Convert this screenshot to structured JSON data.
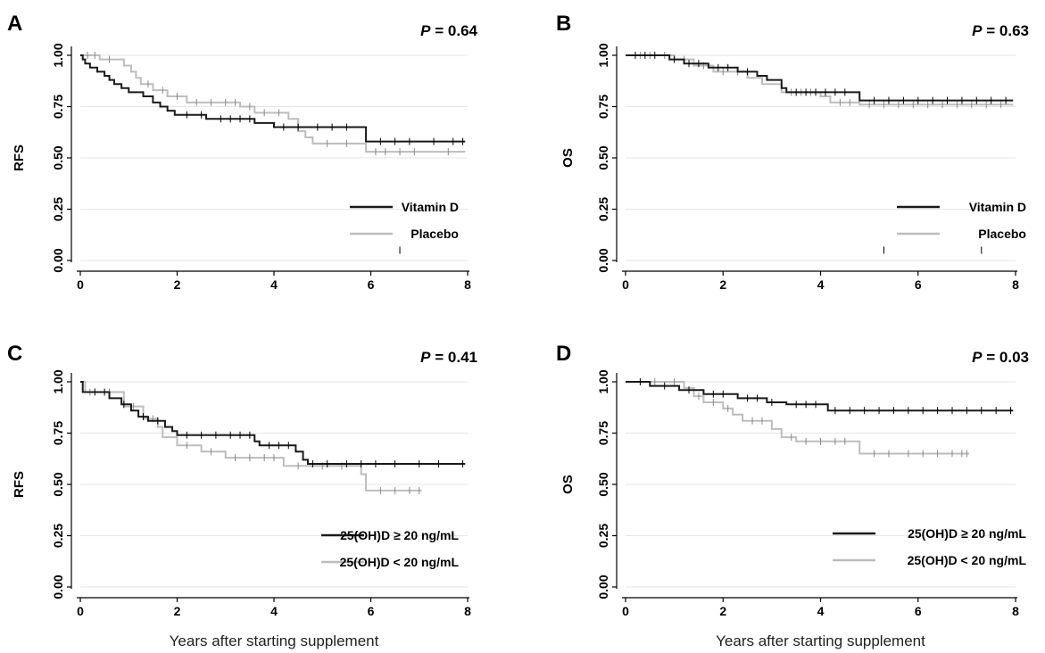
{
  "colors": {
    "dark": "#1a1a1a",
    "light": "#bdbdbd",
    "grid": "#e6e6e6"
  },
  "chart_data": [
    {
      "panel": "A",
      "type": "line",
      "step": true,
      "p_label": "P",
      "p_value": "= 0.64",
      "ylabel": "RFS",
      "xlabel": "",
      "xlim": [
        0,
        8
      ],
      "ylim": [
        0,
        1
      ],
      "xticks": [
        "0",
        "2",
        "4",
        "6",
        "8"
      ],
      "yticks": [
        "0.00",
        "0.25",
        "0.50",
        "0.75",
        "1.00"
      ],
      "grid": true,
      "legend_position": "bottom-right",
      "series": [
        {
          "name": "Vitamin D",
          "color": "#1a1a1a",
          "points": [
            [
              0,
              1
            ],
            [
              0.05,
              0.98
            ],
            [
              0.1,
              0.96
            ],
            [
              0.2,
              0.94
            ],
            [
              0.35,
              0.92
            ],
            [
              0.5,
              0.9
            ],
            [
              0.6,
              0.88
            ],
            [
              0.7,
              0.86
            ],
            [
              0.85,
              0.84
            ],
            [
              1.0,
              0.82
            ],
            [
              1.3,
              0.8
            ],
            [
              1.5,
              0.77
            ],
            [
              1.65,
              0.75
            ],
            [
              1.8,
              0.73
            ],
            [
              1.95,
              0.71
            ],
            [
              2.6,
              0.69
            ],
            [
              3.6,
              0.67
            ],
            [
              4.0,
              0.65
            ],
            [
              5.9,
              0.58
            ],
            [
              7.95,
              0.58
            ]
          ],
          "censor": [
            2.2,
            2.5,
            2.9,
            3.1,
            3.3,
            3.5,
            4.2,
            4.5,
            4.9,
            5.2,
            5.5,
            6.2,
            6.5,
            6.8,
            7.3,
            7.7,
            7.9
          ]
        },
        {
          "name": "Placebo",
          "color": "#bdbdbd",
          "points": [
            [
              0,
              1
            ],
            [
              0.4,
              0.98
            ],
            [
              0.9,
              0.95
            ],
            [
              1.05,
              0.92
            ],
            [
              1.15,
              0.89
            ],
            [
              1.25,
              0.86
            ],
            [
              1.5,
              0.83
            ],
            [
              1.8,
              0.8
            ],
            [
              2.2,
              0.77
            ],
            [
              3.3,
              0.75
            ],
            [
              3.6,
              0.72
            ],
            [
              4.3,
              0.69
            ],
            [
              4.5,
              0.63
            ],
            [
              4.65,
              0.6
            ],
            [
              4.8,
              0.57
            ],
            [
              5.9,
              0.53
            ],
            [
              7.95,
              0.53
            ]
          ],
          "censor": [
            0.15,
            0.3,
            0.6,
            1.4,
            1.7,
            2.0,
            2.4,
            2.7,
            3.0,
            3.2,
            3.5,
            3.8,
            4.1,
            5.1,
            5.5,
            6.1,
            6.3,
            6.6,
            6.9,
            7.6
          ]
        }
      ],
      "extra_censor": [
        [
          6.6,
          0.05
        ]
      ]
    },
    {
      "panel": "B",
      "type": "line",
      "step": true,
      "p_label": "P",
      "p_value": "= 0.63",
      "ylabel": "OS",
      "xlabel": "",
      "xlim": [
        0,
        8
      ],
      "ylim": [
        0,
        1
      ],
      "xticks": [
        "0",
        "2",
        "4",
        "6",
        "8"
      ],
      "yticks": [
        "0.00",
        "0.25",
        "0.50",
        "0.75",
        "1.00"
      ],
      "grid": true,
      "legend_position": "bottom-right",
      "series": [
        {
          "name": "Vitamin D",
          "color": "#1a1a1a",
          "points": [
            [
              0,
              1
            ],
            [
              0.9,
              0.98
            ],
            [
              1.2,
              0.96
            ],
            [
              1.7,
              0.94
            ],
            [
              2.3,
              0.92
            ],
            [
              2.7,
              0.9
            ],
            [
              2.9,
              0.88
            ],
            [
              3.2,
              0.84
            ],
            [
              3.3,
              0.82
            ],
            [
              4.8,
              0.78
            ],
            [
              7.95,
              0.78
            ]
          ],
          "censor": [
            0.2,
            0.4,
            0.6,
            1.0,
            1.3,
            1.5,
            1.9,
            2.1,
            2.5,
            3.5,
            3.7,
            3.9,
            4.1,
            4.3,
            4.5,
            5.1,
            5.4,
            5.7,
            6.0,
            6.3,
            6.6,
            6.9,
            7.2,
            7.5,
            7.8
          ]
        },
        {
          "name": "Placebo",
          "color": "#bdbdbd",
          "points": [
            [
              0,
              1
            ],
            [
              1.0,
              0.98
            ],
            [
              1.4,
              0.95
            ],
            [
              1.8,
              0.92
            ],
            [
              2.5,
              0.89
            ],
            [
              2.8,
              0.86
            ],
            [
              3.2,
              0.82
            ],
            [
              4.0,
              0.8
            ],
            [
              4.2,
              0.77
            ],
            [
              4.8,
              0.76
            ],
            [
              7.95,
              0.76
            ]
          ],
          "censor": [
            0.3,
            0.5,
            0.8,
            1.2,
            1.6,
            2.0,
            2.3,
            3.4,
            3.6,
            3.8,
            4.4,
            4.6,
            5.0,
            5.3,
            5.6,
            5.9,
            6.2,
            6.5,
            6.8,
            7.1,
            7.4,
            7.7
          ]
        }
      ],
      "extra_censor": [
        [
          5.3,
          0.05
        ],
        [
          7.3,
          0.05
        ]
      ]
    },
    {
      "panel": "C",
      "type": "line",
      "step": true,
      "p_label": "P",
      "p_value": "= 0.41",
      "ylabel": "RFS",
      "xlabel": "Years after starting supplement",
      "xlim": [
        0,
        8
      ],
      "ylim": [
        0,
        1
      ],
      "xticks": [
        "0",
        "2",
        "4",
        "6",
        "8"
      ],
      "yticks": [
        "0.00",
        "0.25",
        "0.50",
        "0.75",
        "1.00"
      ],
      "grid": true,
      "legend_position": "bottom-right",
      "series": [
        {
          "name": "25(OH)D ≥ 20 ng/mL",
          "color": "#1a1a1a",
          "points": [
            [
              0,
              1
            ],
            [
              0.05,
              0.95
            ],
            [
              0.6,
              0.92
            ],
            [
              0.85,
              0.89
            ],
            [
              1.05,
              0.86
            ],
            [
              1.2,
              0.83
            ],
            [
              1.4,
              0.81
            ],
            [
              1.75,
              0.78
            ],
            [
              1.9,
              0.76
            ],
            [
              2.0,
              0.74
            ],
            [
              3.6,
              0.71
            ],
            [
              3.7,
              0.69
            ],
            [
              4.45,
              0.66
            ],
            [
              4.6,
              0.62
            ],
            [
              4.7,
              0.6
            ],
            [
              7.95,
              0.6
            ]
          ],
          "censor": [
            0.3,
            0.5,
            0.9,
            1.3,
            1.6,
            2.2,
            2.5,
            2.8,
            3.1,
            3.3,
            3.5,
            3.9,
            4.1,
            4.3,
            4.8,
            5.1,
            5.5,
            5.8,
            6.1,
            6.5,
            7.0,
            7.4,
            7.9
          ]
        },
        {
          "name": "25(OH)D < 20 ng/mL",
          "color": "#bdbdbd",
          "points": [
            [
              0,
              1
            ],
            [
              0.1,
              0.95
            ],
            [
              0.9,
              0.88
            ],
            [
              1.3,
              0.82
            ],
            [
              1.6,
              0.78
            ],
            [
              1.7,
              0.73
            ],
            [
              2.0,
              0.69
            ],
            [
              2.5,
              0.66
            ],
            [
              3.0,
              0.63
            ],
            [
              4.2,
              0.59
            ],
            [
              5.8,
              0.55
            ],
            [
              5.9,
              0.47
            ],
            [
              7.05,
              0.47
            ]
          ],
          "censor": [
            0.2,
            0.6,
            1.1,
            1.5,
            2.2,
            2.7,
            3.2,
            3.5,
            3.8,
            4.0,
            4.5,
            5.0,
            5.4,
            6.2,
            6.5,
            6.8,
            7.0
          ]
        }
      ],
      "extra_censor": []
    },
    {
      "panel": "D",
      "type": "line",
      "step": true,
      "p_label": "P",
      "p_value": "= 0.03",
      "ylabel": "OS",
      "xlabel": "Years after starting supplement",
      "xlim": [
        0,
        8
      ],
      "ylim": [
        0,
        1
      ],
      "xticks": [
        "0",
        "2",
        "4",
        "6",
        "8"
      ],
      "yticks": [
        "0.00",
        "0.25",
        "0.50",
        "0.75",
        "1.00"
      ],
      "grid": true,
      "legend_position": "bottom-right",
      "series": [
        {
          "name": "25(OH)D ≥ 20 ng/mL",
          "color": "#1a1a1a",
          "points": [
            [
              0,
              1
            ],
            [
              0.5,
              0.98
            ],
            [
              1.1,
              0.96
            ],
            [
              1.6,
              0.94
            ],
            [
              2.3,
              0.92
            ],
            [
              2.9,
              0.9
            ],
            [
              3.3,
              0.89
            ],
            [
              4.15,
              0.86
            ],
            [
              7.95,
              0.86
            ]
          ],
          "censor": [
            0.3,
            0.8,
            1.3,
            1.8,
            2.0,
            2.5,
            2.7,
            3.0,
            3.5,
            3.7,
            3.9,
            4.3,
            4.6,
            4.9,
            5.2,
            5.5,
            5.8,
            6.1,
            6.4,
            6.7,
            7.0,
            7.3,
            7.6,
            7.9
          ]
        },
        {
          "name": "25(OH)D < 20 ng/mL",
          "color": "#bdbdbd",
          "points": [
            [
              0,
              1
            ],
            [
              1.2,
              0.97
            ],
            [
              1.4,
              0.93
            ],
            [
              1.6,
              0.9
            ],
            [
              2.0,
              0.87
            ],
            [
              2.2,
              0.84
            ],
            [
              2.4,
              0.81
            ],
            [
              3.0,
              0.77
            ],
            [
              3.2,
              0.73
            ],
            [
              3.5,
              0.71
            ],
            [
              4.8,
              0.65
            ],
            [
              7.05,
              0.65
            ]
          ],
          "censor": [
            0.6,
            1.0,
            1.5,
            1.8,
            2.1,
            2.6,
            2.8,
            3.4,
            3.7,
            4.0,
            4.3,
            4.5,
            5.1,
            5.4,
            5.8,
            6.1,
            6.4,
            6.7,
            6.9,
            7.0
          ]
        }
      ],
      "extra_censor": []
    }
  ]
}
